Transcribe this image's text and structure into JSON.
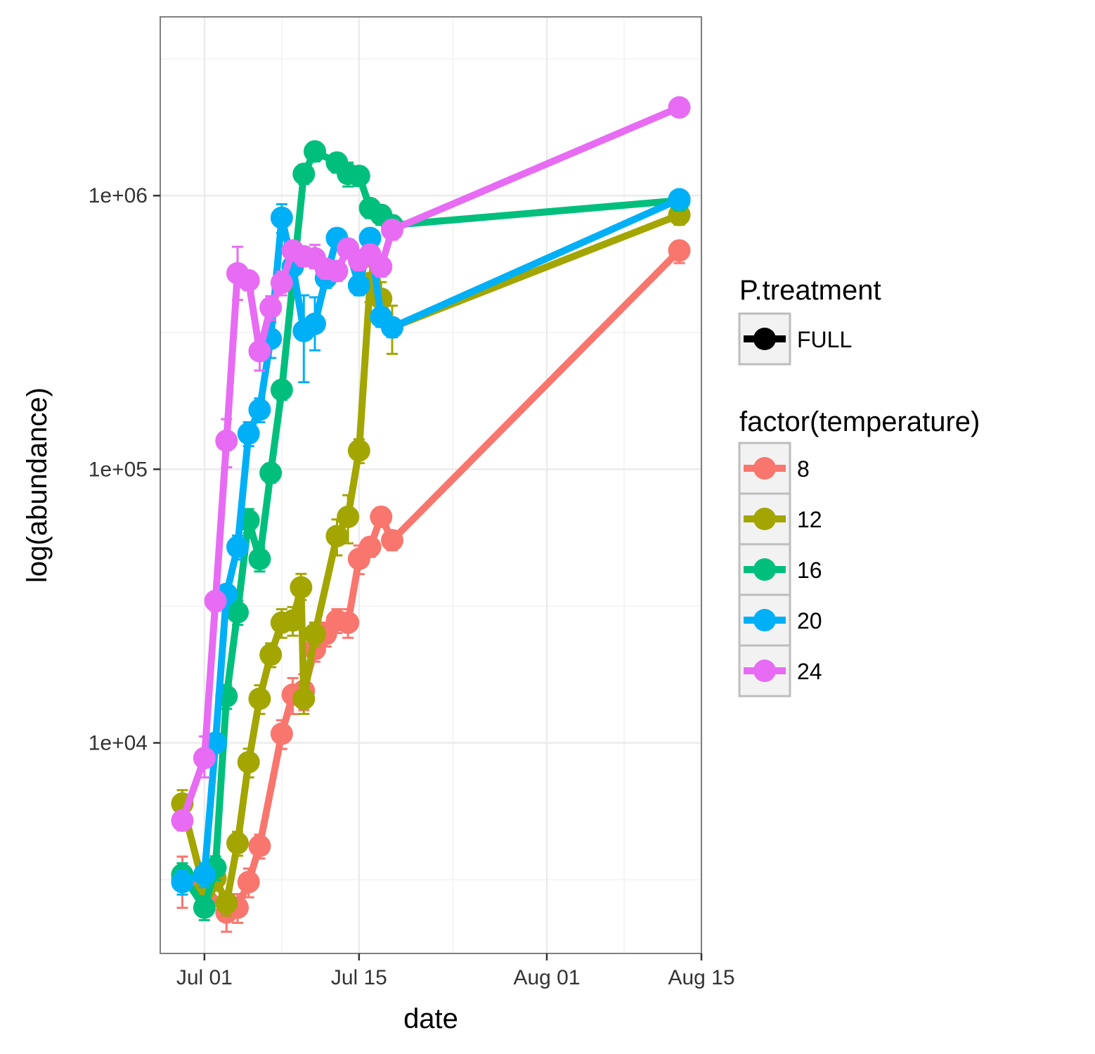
{
  "chart_data": {
    "type": "line",
    "xlabel": "date",
    "ylabel": "log(abundance)",
    "y_scale": "log10",
    "xlim": [
      "2016-06-27",
      "2016-08-15"
    ],
    "ylim": [
      1700,
      4500000
    ],
    "x_ticks": [
      {
        "date": "2016-07-01",
        "label": "Jul 01"
      },
      {
        "date": "2016-07-15",
        "label": "Jul 15"
      },
      {
        "date": "2016-08-01",
        "label": "Aug 01"
      },
      {
        "date": "2016-08-15",
        "label": "Aug 15"
      }
    ],
    "y_ticks": [
      {
        "value": 10000,
        "label": "1e+04"
      },
      {
        "value": 100000,
        "label": "1e+05"
      },
      {
        "value": 1000000,
        "label": "1e+06"
      }
    ],
    "grid": true,
    "legend": {
      "position": "right",
      "shape_title": "P.treatment",
      "shape_entries": [
        {
          "label": "FULL",
          "color": "#000000"
        }
      ],
      "color_title": "factor(temperature)",
      "color_entries": [
        {
          "label": "8",
          "color": "#F8766D"
        },
        {
          "label": "12",
          "color": "#A3A500"
        },
        {
          "label": "16",
          "color": "#00BF7D"
        },
        {
          "label": "20",
          "color": "#00B0F6"
        },
        {
          "label": "24",
          "color": "#E76BF3"
        }
      ]
    },
    "series": [
      {
        "name": "8",
        "color": "#F8766D",
        "points": [
          [
            "2016-06-29",
            3200
          ],
          [
            "2016-07-01",
            3000
          ],
          [
            "2016-07-03",
            2400
          ],
          [
            "2016-07-04",
            2500
          ],
          [
            "2016-07-05",
            3100
          ],
          [
            "2016-07-06",
            4200
          ],
          [
            "2016-07-08",
            10800
          ],
          [
            "2016-07-09",
            15000
          ],
          [
            "2016-07-10",
            15500
          ],
          [
            "2016-07-11",
            22000
          ],
          [
            "2016-07-12",
            25000
          ],
          [
            "2016-07-13",
            28000
          ],
          [
            "2016-07-14",
            27500
          ],
          [
            "2016-07-15",
            47000
          ],
          [
            "2016-07-16",
            52000
          ],
          [
            "2016-07-17",
            67000
          ],
          [
            "2016-07-18",
            55000
          ],
          [
            "2016-08-13",
            630000
          ]
        ],
        "errors": [
          [
            0.78,
            1.2
          ],
          [
            0.78,
            1.2
          ],
          [
            0.85,
            1.15
          ],
          [
            0.88,
            1.12
          ],
          [
            0.88,
            1.12
          ],
          [
            0.9,
            1.1
          ],
          [
            0.88,
            1.12
          ],
          [
            0.85,
            1.15
          ],
          [
            0.85,
            1.15
          ],
          [
            0.9,
            1.1
          ],
          [
            0.9,
            1.1
          ],
          [
            0.9,
            1.1
          ],
          [
            0.88,
            1.12
          ],
          [
            0.88,
            1.12
          ],
          [
            0.92,
            1.08
          ],
          [
            0.92,
            1.08
          ],
          [
            0.92,
            1.08
          ],
          [
            0.9,
            1.08
          ]
        ]
      },
      {
        "name": "12",
        "color": "#A3A500",
        "points": [
          [
            "2016-06-29",
            6000
          ],
          [
            "2016-07-01",
            2900
          ],
          [
            "2016-07-02",
            3200
          ],
          [
            "2016-07-03",
            2600
          ],
          [
            "2016-07-04",
            4300
          ],
          [
            "2016-07-05",
            8500
          ],
          [
            "2016-07-06",
            14500
          ],
          [
            "2016-07-07",
            21000
          ],
          [
            "2016-07-08",
            27500
          ],
          [
            "2016-07-09",
            28000
          ],
          [
            "2016-07-09T18",
            37000
          ],
          [
            "2016-07-10",
            14500
          ],
          [
            "2016-07-11",
            25000
          ],
          [
            "2016-07-13",
            57000
          ],
          [
            "2016-07-14",
            67000
          ],
          [
            "2016-07-15",
            117000
          ],
          [
            "2016-07-16",
            480000
          ],
          [
            "2016-07-17",
            420000
          ],
          [
            "2016-07-18",
            330000
          ],
          [
            "2016-08-13",
            850000
          ]
        ],
        "errors": [
          [
            0.88,
            1.12
          ],
          [
            0.9,
            1.1
          ],
          [
            0.9,
            1.1
          ],
          [
            0.9,
            1.1
          ],
          [
            0.9,
            1.1
          ],
          [
            0.88,
            1.12
          ],
          [
            0.88,
            1.12
          ],
          [
            0.9,
            1.1
          ],
          [
            0.88,
            1.12
          ],
          [
            0.88,
            1.12
          ],
          [
            0.9,
            1.12
          ],
          [
            0.88,
            1.12
          ],
          [
            0.9,
            1.1
          ],
          [
            0.85,
            1.15
          ],
          [
            0.8,
            1.2
          ],
          [
            0.9,
            1.1
          ],
          [
            0.85,
            1.15
          ],
          [
            0.85,
            1.15
          ],
          [
            0.8,
            1.2
          ],
          [
            0.92,
            1.08
          ]
        ]
      },
      {
        "name": "16",
        "color": "#00BF7D",
        "points": [
          [
            "2016-06-29",
            3300
          ],
          [
            "2016-07-01",
            2500
          ],
          [
            "2016-07-02",
            3500
          ],
          [
            "2016-07-03",
            14800
          ],
          [
            "2016-07-04",
            30000
          ],
          [
            "2016-07-05",
            65000
          ],
          [
            "2016-07-06",
            47000
          ],
          [
            "2016-07-07",
            97000
          ],
          [
            "2016-07-08",
            195000
          ],
          [
            "2016-07-10",
            1200000
          ],
          [
            "2016-07-11",
            1450000
          ],
          [
            "2016-07-13",
            1320000
          ],
          [
            "2016-07-14",
            1200000
          ],
          [
            "2016-07-15",
            1180000
          ],
          [
            "2016-07-16",
            900000
          ],
          [
            "2016-07-17",
            850000
          ],
          [
            "2016-07-18",
            780000
          ],
          [
            "2016-08-13",
            960000
          ]
        ],
        "errors": [
          [
            0.9,
            1.1
          ],
          [
            0.9,
            1.1
          ],
          [
            0.9,
            1.1
          ],
          [
            0.9,
            1.1
          ],
          [
            0.9,
            1.1
          ],
          [
            0.9,
            1.1
          ],
          [
            0.9,
            1.1
          ],
          [
            0.92,
            1.08
          ],
          [
            0.92,
            1.08
          ],
          [
            0.92,
            1.08
          ],
          [
            0.92,
            1.08
          ],
          [
            0.92,
            1.08
          ],
          [
            0.9,
            1.1
          ],
          [
            0.92,
            1.08
          ],
          [
            0.92,
            1.08
          ],
          [
            0.92,
            1.08
          ],
          [
            0.92,
            1.08
          ],
          [
            0.92,
            1.08
          ]
        ]
      },
      {
        "name": "20",
        "color": "#00B0F6",
        "points": [
          [
            "2016-06-29",
            3100
          ],
          [
            "2016-07-01",
            3300
          ],
          [
            "2016-07-02",
            10000
          ],
          [
            "2016-07-03",
            35000
          ],
          [
            "2016-07-04",
            52000
          ],
          [
            "2016-07-05",
            135000
          ],
          [
            "2016-07-06",
            165000
          ],
          [
            "2016-07-07",
            300000
          ],
          [
            "2016-07-08",
            830000
          ],
          [
            "2016-07-09",
            550000
          ],
          [
            "2016-07-10",
            320000
          ],
          [
            "2016-07-11",
            340000
          ],
          [
            "2016-07-12",
            500000
          ],
          [
            "2016-07-13",
            700000
          ],
          [
            "2016-07-14",
            640000
          ],
          [
            "2016-07-15",
            470000
          ],
          [
            "2016-07-16",
            700000
          ],
          [
            "2016-07-17",
            360000
          ],
          [
            "2016-07-18",
            330000
          ],
          [
            "2016-08-13",
            970000
          ]
        ],
        "errors": [
          [
            0.9,
            1.1
          ],
          [
            0.9,
            1.1
          ],
          [
            0.92,
            1.08
          ],
          [
            0.92,
            1.08
          ],
          [
            0.9,
            1.1
          ],
          [
            0.9,
            1.1
          ],
          [
            0.9,
            1.1
          ],
          [
            0.85,
            1.15
          ],
          [
            0.88,
            1.12
          ],
          [
            0.88,
            1.12
          ],
          [
            0.65,
            1.35
          ],
          [
            0.8,
            1.25
          ],
          [
            0.92,
            1.08
          ],
          [
            0.92,
            1.08
          ],
          [
            0.92,
            1.08
          ],
          [
            0.92,
            1.08
          ],
          [
            0.92,
            1.08
          ],
          [
            0.92,
            1.08
          ],
          [
            0.92,
            1.08
          ],
          [
            0.95,
            1.05
          ]
        ]
      },
      {
        "name": "24",
        "color": "#E76BF3",
        "points": [
          [
            "2016-06-29",
            5200
          ],
          [
            "2016-07-01",
            8800
          ],
          [
            "2016-07-02",
            33000
          ],
          [
            "2016-07-03",
            127000
          ],
          [
            "2016-07-04",
            520000
          ],
          [
            "2016-07-05",
            490000
          ],
          [
            "2016-07-06",
            270000
          ],
          [
            "2016-07-07",
            390000
          ],
          [
            "2016-07-08",
            480000
          ],
          [
            "2016-07-09",
            630000
          ],
          [
            "2016-07-10",
            600000
          ],
          [
            "2016-07-11",
            590000
          ],
          [
            "2016-07-12",
            540000
          ],
          [
            "2016-07-13",
            530000
          ],
          [
            "2016-07-14",
            640000
          ],
          [
            "2016-07-15",
            580000
          ],
          [
            "2016-07-16",
            610000
          ],
          [
            "2016-07-17",
            550000
          ],
          [
            "2016-07-18",
            750000
          ],
          [
            "2016-08-13",
            2100000
          ]
        ],
        "errors": [
          [
            0.92,
            1.08
          ],
          [
            0.85,
            1.2
          ],
          [
            0.92,
            1.08
          ],
          [
            0.8,
            1.2
          ],
          [
            0.8,
            1.25
          ],
          [
            0.92,
            1.08
          ],
          [
            0.85,
            1.15
          ],
          [
            0.9,
            1.1
          ],
          [
            0.9,
            1.1
          ],
          [
            0.92,
            1.08
          ],
          [
            0.92,
            1.08
          ],
          [
            0.92,
            1.12
          ],
          [
            0.92,
            1.08
          ],
          [
            0.92,
            1.08
          ],
          [
            0.92,
            1.08
          ],
          [
            0.92,
            1.08
          ],
          [
            0.92,
            1.08
          ],
          [
            0.92,
            1.08
          ],
          [
            0.92,
            1.08
          ],
          [
            0.95,
            1.05
          ]
        ]
      }
    ]
  }
}
